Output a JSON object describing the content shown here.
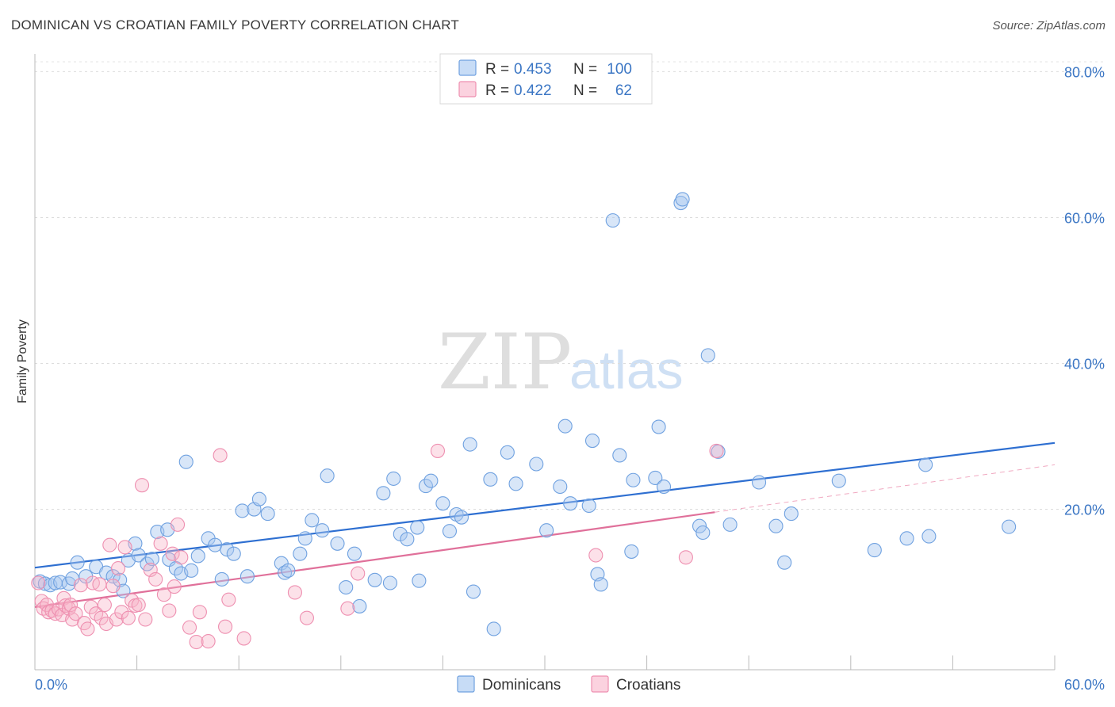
{
  "header": {
    "title": "DOMINICAN VS CROATIAN FAMILY POVERTY CORRELATION CHART",
    "source": "Source: ZipAtlas.com"
  },
  "watermark": {
    "zip": "ZIP",
    "atlas": "atlas"
  },
  "legend": {
    "rows": [
      {
        "r_label": "R = ",
        "r_value": "0.453",
        "n_label": "N = ",
        "n_value": "100",
        "color": "#a8c8f0"
      },
      {
        "r_label": "R = ",
        "r_value": "0.422",
        "n_label": "N = ",
        "n_value": "62",
        "color": "#f7b3c8"
      }
    ]
  },
  "bottom_legend": [
    {
      "label": "Dominicans",
      "color": "#a8c8f0"
    },
    {
      "label": "Croatians",
      "color": "#f7b3c8"
    }
  ],
  "chart_data": {
    "type": "scatter",
    "title": "DOMINICAN VS CROATIAN FAMILY POVERTY CORRELATION CHART",
    "xlabel": "",
    "ylabel": "Family Poverty",
    "xlim": [
      0,
      60
    ],
    "ylim": [
      -2,
      82
    ],
    "x_tick_labels": [
      {
        "value": 0,
        "label": "0.0%"
      },
      {
        "value": 60,
        "label": "60.0%"
      }
    ],
    "y_tick_labels": [
      {
        "value": 20,
        "label": "20.0%"
      },
      {
        "value": 40,
        "label": "40.0%"
      },
      {
        "value": 60,
        "label": "60.0%"
      },
      {
        "value": 80,
        "label": "80.0%"
      }
    ],
    "grid": true,
    "colors": {
      "dominicans": "#6fa1e0",
      "croatians": "#ee8fb0",
      "dominicans_line": "#2e6fd1",
      "croatians_line": "#e0709a"
    },
    "series": [
      {
        "name": "Dominicans",
        "points": [
          [
            0.3,
            10.1
          ],
          [
            0.6,
            9.8
          ],
          [
            0.9,
            9.6
          ],
          [
            1.2,
            9.9
          ],
          [
            1.5,
            10.0
          ],
          [
            2.0,
            9.8
          ],
          [
            2.5,
            12.7
          ],
          [
            2.2,
            10.5
          ],
          [
            3.0,
            10.8
          ],
          [
            3.6,
            12.1
          ],
          [
            4.2,
            11.3
          ],
          [
            4.6,
            10.8
          ],
          [
            5.0,
            10.3
          ],
          [
            5.2,
            8.8
          ],
          [
            5.5,
            13.0
          ],
          [
            5.9,
            15.3
          ],
          [
            6.1,
            13.7
          ],
          [
            6.6,
            12.5
          ],
          [
            6.9,
            13.2
          ],
          [
            7.2,
            16.9
          ],
          [
            7.8,
            17.2
          ],
          [
            7.9,
            13.1
          ],
          [
            8.3,
            11.9
          ],
          [
            8.6,
            11.2
          ],
          [
            8.9,
            26.5
          ],
          [
            9.2,
            11.6
          ],
          [
            9.6,
            13.6
          ],
          [
            10.2,
            16.0
          ],
          [
            10.6,
            15.1
          ],
          [
            11.0,
            10.4
          ],
          [
            11.3,
            14.5
          ],
          [
            11.7,
            13.9
          ],
          [
            12.2,
            19.8
          ],
          [
            12.5,
            10.8
          ],
          [
            12.9,
            20.0
          ],
          [
            13.2,
            21.4
          ],
          [
            13.7,
            19.4
          ],
          [
            14.5,
            12.6
          ],
          [
            14.7,
            11.3
          ],
          [
            14.9,
            11.6
          ],
          [
            15.6,
            13.9
          ],
          [
            15.9,
            16.0
          ],
          [
            16.3,
            18.5
          ],
          [
            16.9,
            17.1
          ],
          [
            17.2,
            24.6
          ],
          [
            17.8,
            15.3
          ],
          [
            18.3,
            9.3
          ],
          [
            18.8,
            13.9
          ],
          [
            19.1,
            6.7
          ],
          [
            20.0,
            10.3
          ],
          [
            20.5,
            22.2
          ],
          [
            20.9,
            9.9
          ],
          [
            21.1,
            24.2
          ],
          [
            21.5,
            16.6
          ],
          [
            21.9,
            15.9
          ],
          [
            22.5,
            17.5
          ],
          [
            22.6,
            10.2
          ],
          [
            23.0,
            23.2
          ],
          [
            23.3,
            23.9
          ],
          [
            24.0,
            20.8
          ],
          [
            24.4,
            17.0
          ],
          [
            24.8,
            19.3
          ],
          [
            25.1,
            18.9
          ],
          [
            25.6,
            28.9
          ],
          [
            25.8,
            8.7
          ],
          [
            26.8,
            24.1
          ],
          [
            27.0,
            3.6
          ],
          [
            27.8,
            27.8
          ],
          [
            28.3,
            23.5
          ],
          [
            29.5,
            26.2
          ],
          [
            30.1,
            17.1
          ],
          [
            30.9,
            23.1
          ],
          [
            31.2,
            31.4
          ],
          [
            31.5,
            20.8
          ],
          [
            32.6,
            20.5
          ],
          [
            32.8,
            29.4
          ],
          [
            33.1,
            11.1
          ],
          [
            33.3,
            9.7
          ],
          [
            34.0,
            59.6
          ],
          [
            34.4,
            27.4
          ],
          [
            35.1,
            14.2
          ],
          [
            35.2,
            24.0
          ],
          [
            36.5,
            24.3
          ],
          [
            36.7,
            31.3
          ],
          [
            37.0,
            23.1
          ],
          [
            38.0,
            62.0
          ],
          [
            38.1,
            62.5
          ],
          [
            39.1,
            17.7
          ],
          [
            39.3,
            16.8
          ],
          [
            39.6,
            41.1
          ],
          [
            40.2,
            27.9
          ],
          [
            40.9,
            17.9
          ],
          [
            42.6,
            23.7
          ],
          [
            43.6,
            17.7
          ],
          [
            44.1,
            12.7
          ],
          [
            44.5,
            19.4
          ],
          [
            47.3,
            23.9
          ],
          [
            49.4,
            14.4
          ],
          [
            51.3,
            16.0
          ],
          [
            52.4,
            26.1
          ],
          [
            52.6,
            16.3
          ],
          [
            57.3,
            17.6
          ]
        ]
      },
      {
        "name": "Croatians",
        "points": [
          [
            0.2,
            9.9
          ],
          [
            0.4,
            7.4
          ],
          [
            0.5,
            6.4
          ],
          [
            0.7,
            6.9
          ],
          [
            0.8,
            5.9
          ],
          [
            1.0,
            6.1
          ],
          [
            1.2,
            5.7
          ],
          [
            1.4,
            6.3
          ],
          [
            1.6,
            5.5
          ],
          [
            1.7,
            7.8
          ],
          [
            1.8,
            6.8
          ],
          [
            2.0,
            6.4
          ],
          [
            2.1,
            6.9
          ],
          [
            2.2,
            4.9
          ],
          [
            2.4,
            5.7
          ],
          [
            2.7,
            9.6
          ],
          [
            2.9,
            4.4
          ],
          [
            3.1,
            3.6
          ],
          [
            3.3,
            6.6
          ],
          [
            3.4,
            9.9
          ],
          [
            3.6,
            5.7
          ],
          [
            3.8,
            9.7
          ],
          [
            3.9,
            5.1
          ],
          [
            4.1,
            6.9
          ],
          [
            4.2,
            4.3
          ],
          [
            4.4,
            15.1
          ],
          [
            4.6,
            9.5
          ],
          [
            4.8,
            4.9
          ],
          [
            4.9,
            11.9
          ],
          [
            5.1,
            5.9
          ],
          [
            5.3,
            14.8
          ],
          [
            5.5,
            5.1
          ],
          [
            5.7,
            7.5
          ],
          [
            5.9,
            6.8
          ],
          [
            6.1,
            6.9
          ],
          [
            6.3,
            23.3
          ],
          [
            6.5,
            4.9
          ],
          [
            6.8,
            11.7
          ],
          [
            7.1,
            10.4
          ],
          [
            7.4,
            15.3
          ],
          [
            7.6,
            8.3
          ],
          [
            7.9,
            6.1
          ],
          [
            8.1,
            13.9
          ],
          [
            8.2,
            9.4
          ],
          [
            8.4,
            17.9
          ],
          [
            8.6,
            13.4
          ],
          [
            9.1,
            3.8
          ],
          [
            9.5,
            1.8
          ],
          [
            9.7,
            5.9
          ],
          [
            10.2,
            1.9
          ],
          [
            10.9,
            27.4
          ],
          [
            11.2,
            3.9
          ],
          [
            11.4,
            7.6
          ],
          [
            12.3,
            2.3
          ],
          [
            15.3,
            8.6
          ],
          [
            16.0,
            5.1
          ],
          [
            18.4,
            6.4
          ],
          [
            19.0,
            11.2
          ],
          [
            23.7,
            28.0
          ],
          [
            33.0,
            13.7
          ],
          [
            38.3,
            13.4
          ],
          [
            40.1,
            28.0
          ]
        ]
      }
    ],
    "trend_lines": [
      {
        "name": "Dominicans",
        "x": [
          0,
          60
        ],
        "y": [
          12.0,
          29.1
        ],
        "style": "solid"
      },
      {
        "name": "Croatians",
        "x": [
          0,
          40
        ],
        "y": [
          6.6,
          19.6
        ],
        "style": "solid"
      },
      {
        "name": "Croatians (projected)",
        "x": [
          40,
          60
        ],
        "y": [
          19.6,
          26.1
        ],
        "style": "dashed"
      }
    ]
  }
}
